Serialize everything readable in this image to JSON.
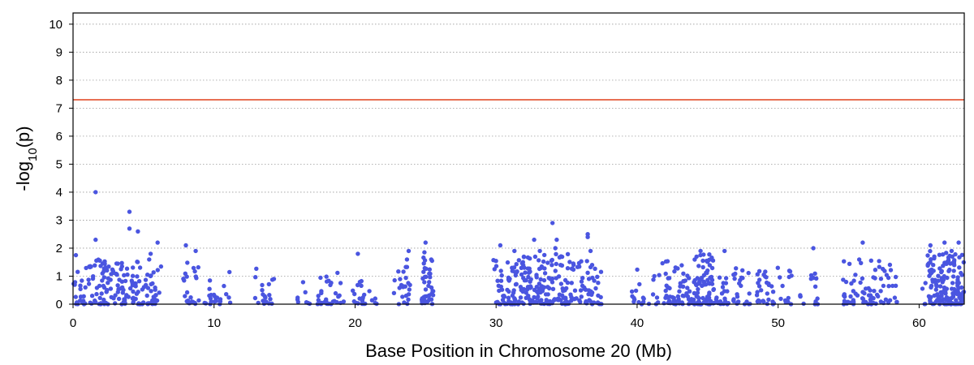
{
  "chart_data": {
    "type": "scatter",
    "xlabel": "Base Position in Chromosome 20 (Mb)",
    "ylabel_main": "-log",
    "ylabel_sub": "10",
    "ylabel_tail": "(p)",
    "xlim": [
      0,
      63.2
    ],
    "ylim": [
      0,
      10.4
    ],
    "xticks": [
      0,
      10,
      20,
      30,
      40,
      50,
      60
    ],
    "yticks": [
      0,
      1,
      2,
      3,
      4,
      5,
      6,
      7,
      8,
      9,
      10
    ],
    "grid": "horizontal-dotted",
    "threshold": {
      "value": 7.3,
      "color": "#e0401c"
    },
    "point_color": "#4a55e0",
    "notable_points": [
      {
        "x": 1.6,
        "y": 4.0
      },
      {
        "x": 4.0,
        "y": 3.3
      },
      {
        "x": 4.0,
        "y": 2.7
      },
      {
        "x": 4.6,
        "y": 2.6
      },
      {
        "x": 34.0,
        "y": 2.9
      },
      {
        "x": 36.5,
        "y": 2.5
      },
      {
        "x": 36.5,
        "y": 2.4
      },
      {
        "x": 32.7,
        "y": 2.3
      },
      {
        "x": 34.3,
        "y": 2.3
      },
      {
        "x": 1.6,
        "y": 2.3
      },
      {
        "x": 6.0,
        "y": 2.2
      },
      {
        "x": 25.0,
        "y": 2.2
      },
      {
        "x": 56.0,
        "y": 2.2
      },
      {
        "x": 61.8,
        "y": 2.2
      },
      {
        "x": 62.8,
        "y": 2.2
      },
      {
        "x": 8.0,
        "y": 2.1
      },
      {
        "x": 30.3,
        "y": 2.1
      },
      {
        "x": 60.8,
        "y": 2.1
      },
      {
        "x": 52.5,
        "y": 2.0
      },
      {
        "x": 34.2,
        "y": 2.0
      },
      {
        "x": 8.7,
        "y": 1.9
      },
      {
        "x": 23.8,
        "y": 1.9
      },
      {
        "x": 44.5,
        "y": 1.9
      },
      {
        "x": 46.2,
        "y": 1.9
      },
      {
        "x": 36.7,
        "y": 1.9
      },
      {
        "x": 20.2,
        "y": 1.8
      },
      {
        "x": 0.2,
        "y": 1.75
      },
      {
        "x": 5.5,
        "y": 1.8
      },
      {
        "x": 31.3,
        "y": 1.9
      },
      {
        "x": 33.1,
        "y": 1.9
      },
      {
        "x": 62.3,
        "y": 1.9
      }
    ],
    "clusters": [
      {
        "x0": 0.0,
        "x1": 0.8,
        "n": 18,
        "ymax": 1.2
      },
      {
        "x0": 0.8,
        "x1": 1.3,
        "n": 10,
        "ymax": 1.6
      },
      {
        "x0": 1.3,
        "x1": 6.3,
        "n": 150,
        "ymax": 1.6
      },
      {
        "x0": 7.8,
        "x1": 9.0,
        "n": 22,
        "ymax": 1.6
      },
      {
        "x0": 9.2,
        "x1": 10.5,
        "n": 18,
        "ymax": 1.2
      },
      {
        "x0": 10.5,
        "x1": 11.2,
        "n": 5,
        "ymax": 1.2
      },
      {
        "x0": 12.9,
        "x1": 14.4,
        "n": 20,
        "ymax": 1.3
      },
      {
        "x0": 15.8,
        "x1": 16.8,
        "n": 8,
        "ymax": 1.2
      },
      {
        "x0": 17.3,
        "x1": 19.2,
        "n": 30,
        "ymax": 1.3
      },
      {
        "x0": 19.8,
        "x1": 20.8,
        "n": 18,
        "ymax": 0.9
      },
      {
        "x0": 21.0,
        "x1": 21.6,
        "n": 5,
        "ymax": 0.6
      },
      {
        "x0": 22.7,
        "x1": 23.9,
        "n": 24,
        "ymax": 1.7
      },
      {
        "x0": 24.7,
        "x1": 25.6,
        "n": 40,
        "ymax": 1.9
      },
      {
        "x0": 29.8,
        "x1": 31.2,
        "n": 40,
        "ymax": 1.7
      },
      {
        "x0": 31.2,
        "x1": 33.3,
        "n": 90,
        "ymax": 1.7
      },
      {
        "x0": 33.3,
        "x1": 35.5,
        "n": 80,
        "ymax": 1.8
      },
      {
        "x0": 35.5,
        "x1": 37.5,
        "n": 50,
        "ymax": 1.6
      },
      {
        "x0": 39.6,
        "x1": 40.5,
        "n": 14,
        "ymax": 1.4
      },
      {
        "x0": 40.8,
        "x1": 41.6,
        "n": 8,
        "ymax": 1.2
      },
      {
        "x0": 41.8,
        "x1": 44.0,
        "n": 60,
        "ymax": 1.6
      },
      {
        "x0": 44.0,
        "x1": 45.4,
        "n": 80,
        "ymax": 1.8
      },
      {
        "x0": 45.4,
        "x1": 46.5,
        "n": 24,
        "ymax": 1.0
      },
      {
        "x0": 46.8,
        "x1": 48.0,
        "n": 24,
        "ymax": 1.3
      },
      {
        "x0": 48.3,
        "x1": 50.2,
        "n": 32,
        "ymax": 1.3
      },
      {
        "x0": 50.2,
        "x1": 51.0,
        "n": 10,
        "ymax": 1.5
      },
      {
        "x0": 51.5,
        "x1": 52.0,
        "n": 4,
        "ymax": 0.4
      },
      {
        "x0": 52.3,
        "x1": 53.0,
        "n": 10,
        "ymax": 1.2
      },
      {
        "x0": 54.6,
        "x1": 56.0,
        "n": 28,
        "ymax": 1.6
      },
      {
        "x0": 56.0,
        "x1": 57.8,
        "n": 36,
        "ymax": 1.7
      },
      {
        "x0": 57.8,
        "x1": 58.5,
        "n": 12,
        "ymax": 1.6
      },
      {
        "x0": 60.2,
        "x1": 60.6,
        "n": 4,
        "ymax": 0.8
      },
      {
        "x0": 60.6,
        "x1": 63.2,
        "n": 160,
        "ymax": 1.9
      }
    ]
  }
}
